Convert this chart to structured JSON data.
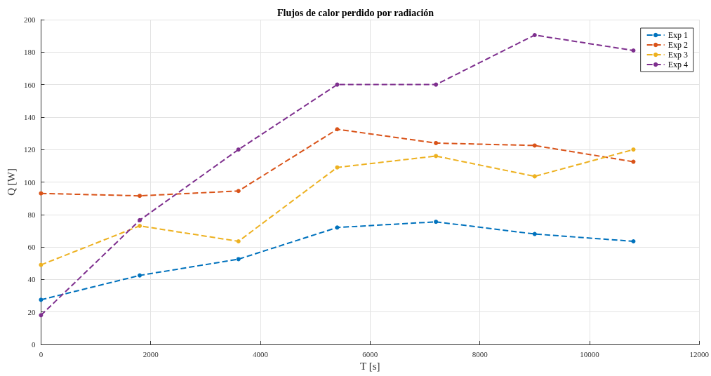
{
  "chart_data": {
    "type": "line",
    "title": "Flujos de calor perdido por radiación",
    "xlabel": "T [s]",
    "ylabel": "Q [W]",
    "x": [
      0,
      1800,
      3600,
      5400,
      7200,
      9000,
      10800
    ],
    "series": [
      {
        "name": "Exp 1",
        "color": "#0072bd",
        "values": [
          27.5,
          42.5,
          52.5,
          72,
          75.5,
          68,
          63.5
        ]
      },
      {
        "name": "Exp 2",
        "color": "#d95319",
        "values": [
          93,
          91.5,
          94.5,
          132.5,
          124,
          122.5,
          112.5
        ]
      },
      {
        "name": "Exp 3",
        "color": "#edb120",
        "values": [
          49,
          73,
          63.5,
          109,
          116,
          103.5,
          120
        ]
      },
      {
        "name": "Exp 4",
        "color": "#7e2f8e",
        "values": [
          18,
          76.5,
          120,
          160,
          160,
          190.5,
          181
        ]
      }
    ],
    "xlim": [
      0,
      12000
    ],
    "xticks": [
      0,
      2000,
      4000,
      6000,
      8000,
      10000,
      12000
    ],
    "ylim": [
      0,
      200
    ],
    "yticks": [
      0,
      20,
      40,
      60,
      80,
      100,
      120,
      140,
      160,
      180,
      200
    ],
    "grid": true,
    "legend": "top right",
    "marker": "circle",
    "line_style": "dashed"
  }
}
